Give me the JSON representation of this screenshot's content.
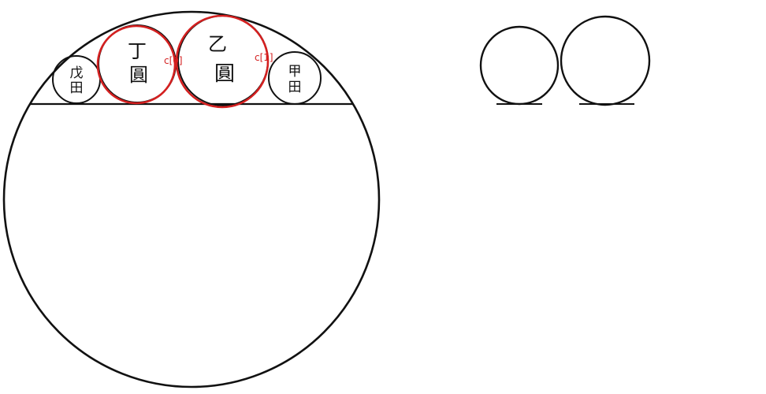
{
  "diagram": {
    "colors": {
      "ink": "#111111",
      "highlight": "#d42020",
      "background": "#ffffff"
    },
    "small_circles": [
      {
        "id": "wu",
        "chars": [
          "戊",
          "田"
        ]
      },
      {
        "id": "ding",
        "chars": [
          "丁",
          "圓"
        ]
      },
      {
        "id": "yi",
        "chars": [
          "乙",
          "圓"
        ]
      },
      {
        "id": "jia",
        "chars": [
          "甲",
          "田"
        ]
      }
    ],
    "labels": {
      "c0": "c[0]",
      "c1": "c[1]"
    }
  }
}
